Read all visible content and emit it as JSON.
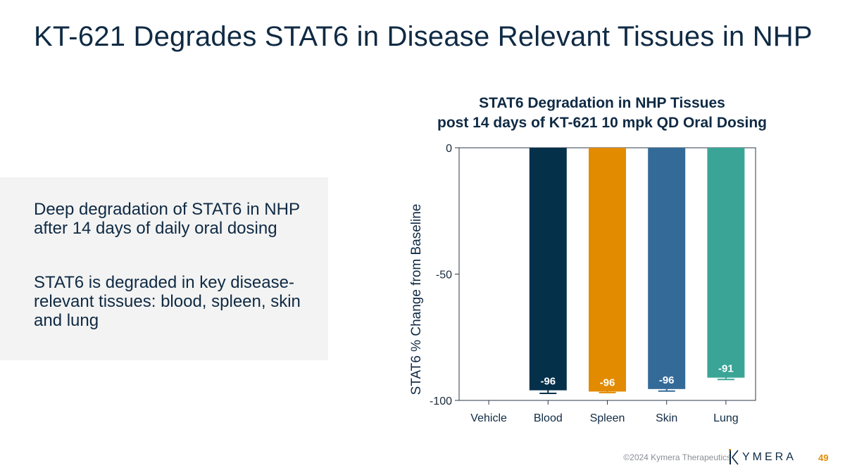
{
  "slide": {
    "title": "KT-621 Degrades STAT6 in Disease Relevant Tissues in NHP",
    "bullets": [
      "Deep degradation of STAT6 in NHP after 14 days of daily oral dosing",
      "STAT6 is degraded in key disease-relevant tissues: blood, spleen, skin and lung"
    ]
  },
  "footer": {
    "copyright": "©2024 Kymera Therapeutics",
    "logo_text": "YMERA",
    "logo_wordmark": "KYMERA",
    "page_number": "49"
  },
  "chart_data": {
    "type": "bar",
    "title": "STAT6 Degradation in NHP Tissues",
    "subtitle": "post 14 days of KT-621 10 mpk QD Oral Dosing",
    "xlabel": "",
    "ylabel": "STAT6 % Change from Baseline",
    "ylim": [
      -100,
      0
    ],
    "yticks": [
      0,
      -50,
      -100
    ],
    "categories": [
      "Vehicle",
      "Blood",
      "Spleen",
      "Skin",
      "Lung"
    ],
    "values": [
      0,
      -96,
      -96.5,
      -95.5,
      -91
    ],
    "errors": [
      0,
      1.2,
      0.4,
      0.8,
      0.7
    ],
    "data_labels": [
      "",
      "-96",
      "-96",
      "-96",
      "-91"
    ],
    "colors": [
      "#ffffff",
      "#05304a",
      "#e38b00",
      "#346a97",
      "#3aa597"
    ],
    "grid": false
  }
}
